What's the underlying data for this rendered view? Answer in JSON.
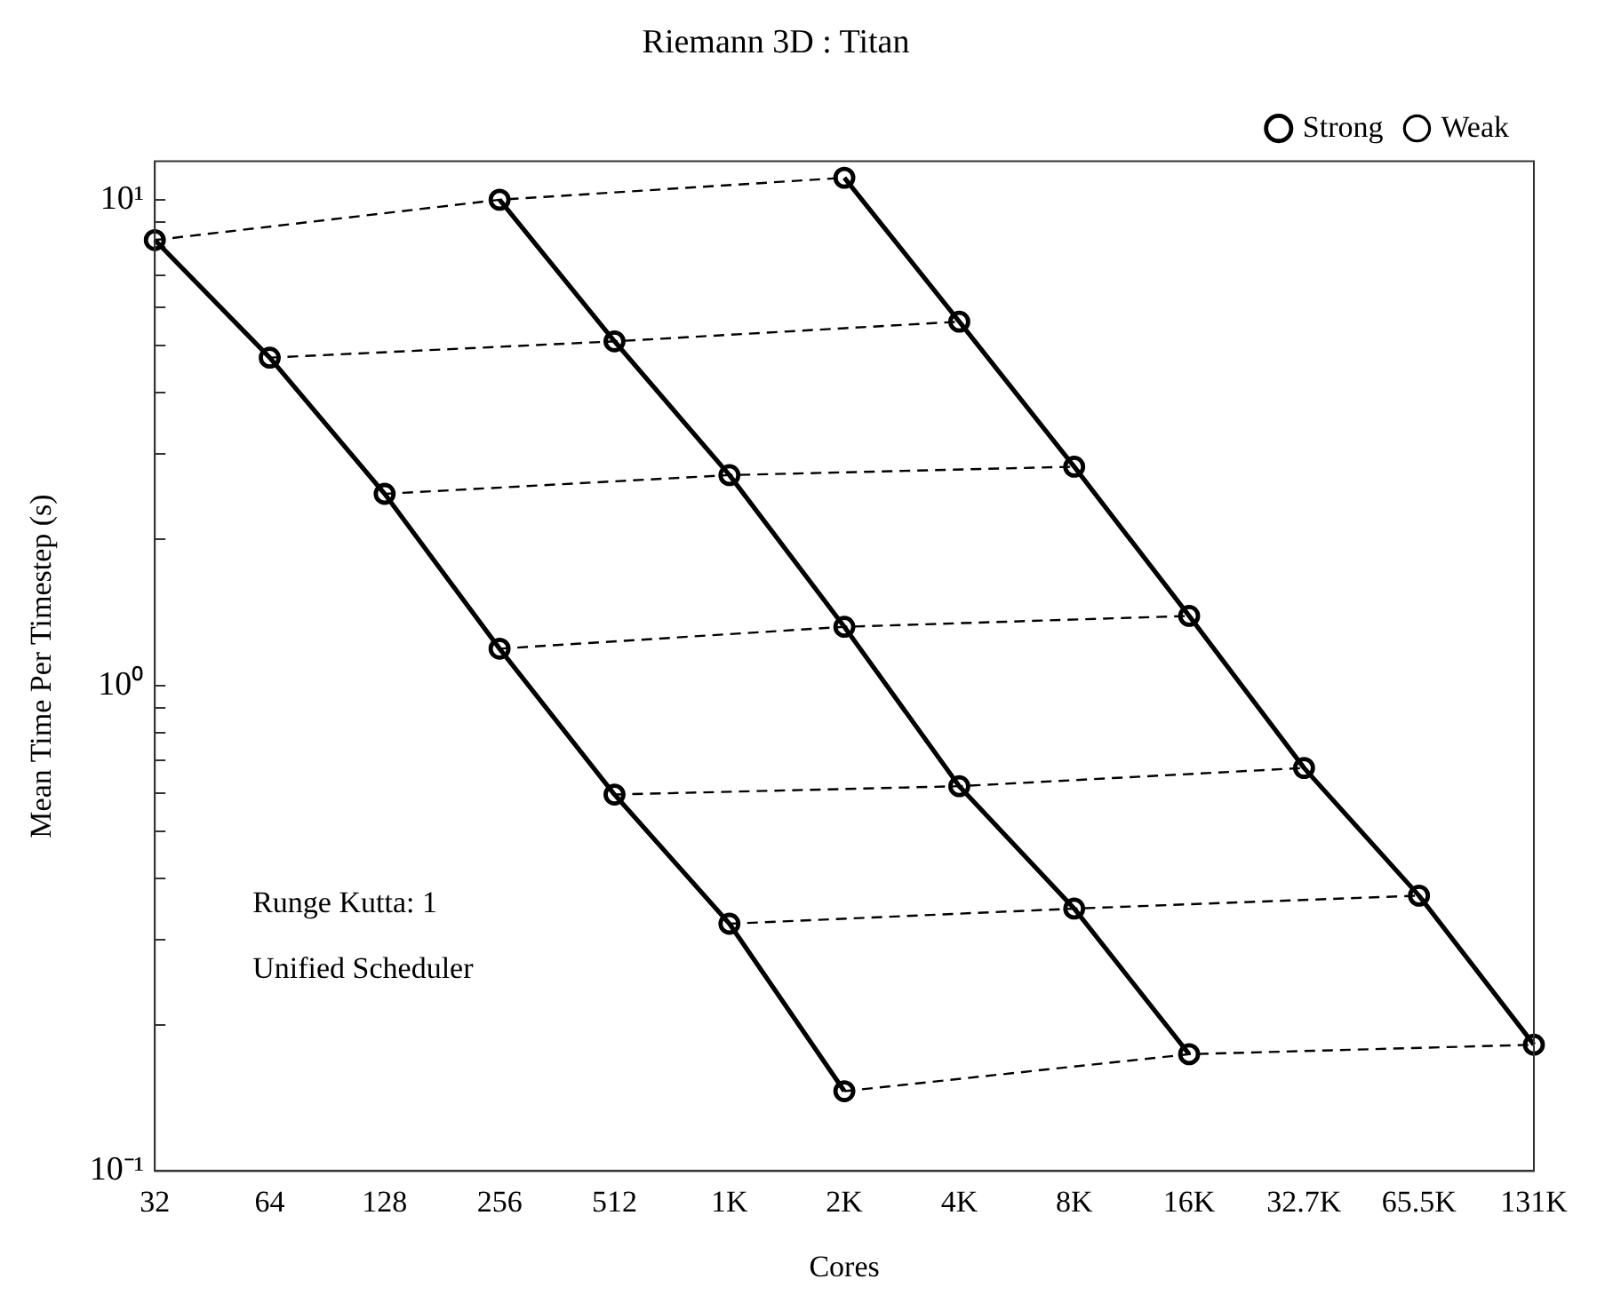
{
  "chart_data": {
    "type": "line",
    "title": "Riemann 3D : Titan",
    "xlabel": "Cores",
    "ylabel": "Mean Time Per Timestep (s)",
    "categories": [
      "32",
      "64",
      "128",
      "256",
      "512",
      "1K",
      "2K",
      "4K",
      "8K",
      "16K",
      "32.7K",
      "65.5K",
      "131K"
    ],
    "log": "y",
    "ylim": [
      0.1,
      12
    ],
    "yticks": [
      {
        "value": 0.1,
        "label": "10⁻¹"
      },
      {
        "value": 0.2,
        "label": null
      },
      {
        "value": 0.3,
        "label": null
      },
      {
        "value": 0.4,
        "label": null
      },
      {
        "value": 0.5,
        "label": null
      },
      {
        "value": 0.6,
        "label": null
      },
      {
        "value": 0.7,
        "label": null
      },
      {
        "value": 0.8,
        "label": null
      },
      {
        "value": 0.9,
        "label": null
      },
      {
        "value": 1,
        "label": "10⁰"
      },
      {
        "value": 2,
        "label": null
      },
      {
        "value": 3,
        "label": null
      },
      {
        "value": 4,
        "label": null
      },
      {
        "value": 5,
        "label": null
      },
      {
        "value": 6,
        "label": null
      },
      {
        "value": 7,
        "label": null
      },
      {
        "value": 8,
        "label": null
      },
      {
        "value": 9,
        "label": null
      },
      {
        "value": 10,
        "label": "10¹"
      }
    ],
    "grid": false,
    "legend": "top right",
    "marker": "circle",
    "annotations": [
      "Runge Kutta: 1",
      "Unified Scheduler"
    ],
    "series": [
      {
        "name": "Strong",
        "color": "#000000",
        "line_style": "solid",
        "values": [
          8.26,
          4.73,
          2.48,
          1.19,
          0.596,
          0.323,
          0.146,
          null,
          null,
          null,
          null,
          null,
          null
        ]
      },
      {
        "color": "#000000",
        "line_style": "solid",
        "values": [
          null,
          null,
          null,
          10.0,
          5.11,
          2.71,
          1.32,
          0.62,
          0.347,
          0.174,
          null,
          null,
          null
        ]
      },
      {
        "color": "#000000",
        "line_style": "solid",
        "values": [
          null,
          null,
          null,
          null,
          null,
          null,
          11.1,
          5.61,
          2.82,
          1.39,
          0.676,
          0.369,
          0.182
        ]
      },
      {
        "name": "Weak",
        "color": "#000000",
        "line_style": "dashed",
        "values": [
          8.26,
          null,
          null,
          10.0,
          null,
          null,
          11.1,
          null,
          null,
          null,
          null,
          null,
          null
        ]
      },
      {
        "color": "#000000",
        "line_style": "dashed",
        "values": [
          null,
          4.73,
          null,
          null,
          5.11,
          null,
          null,
          5.61,
          null,
          null,
          null,
          null,
          null
        ]
      },
      {
        "color": "#000000",
        "line_style": "dashed",
        "values": [
          null,
          null,
          2.48,
          null,
          null,
          2.71,
          null,
          null,
          2.82,
          null,
          null,
          null,
          null
        ]
      },
      {
        "color": "#000000",
        "line_style": "dashed",
        "values": [
          null,
          null,
          null,
          1.19,
          null,
          null,
          1.32,
          null,
          null,
          1.39,
          null,
          null,
          null
        ]
      },
      {
        "color": "#000000",
        "line_style": "dashed",
        "values": [
          null,
          null,
          null,
          null,
          0.596,
          null,
          null,
          0.62,
          null,
          null,
          0.676,
          null,
          null
        ]
      },
      {
        "color": "#000000",
        "line_style": "dashed",
        "values": [
          null,
          null,
          null,
          null,
          null,
          0.323,
          null,
          null,
          0.347,
          null,
          null,
          0.369,
          null
        ]
      },
      {
        "color": "#000000",
        "line_style": "dashed",
        "values": [
          null,
          null,
          null,
          null,
          null,
          null,
          0.146,
          null,
          null,
          0.174,
          null,
          null,
          0.182
        ]
      }
    ]
  }
}
